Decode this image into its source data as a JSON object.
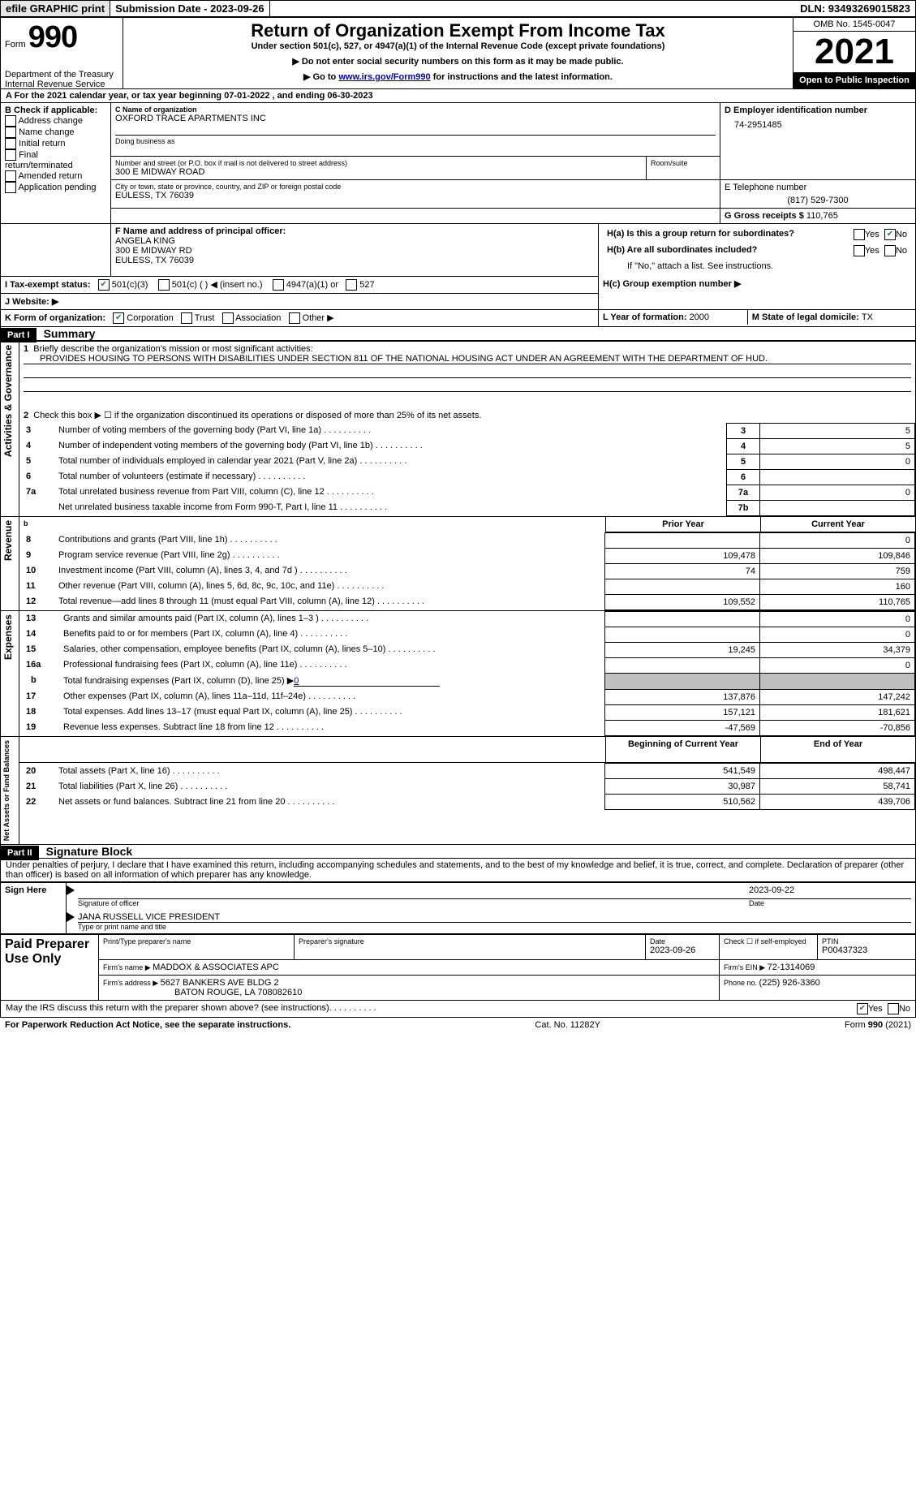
{
  "topbar": {
    "efile": "efile GRAPHIC print",
    "submission_label": "Submission Date - 2023-09-26",
    "dln": "DLN: 93493269015823"
  },
  "header": {
    "form_label": "Form",
    "form_number": "990",
    "title": "Return of Organization Exempt From Income Tax",
    "sub1": "Under section 501(c), 527, or 4947(a)(1) of the Internal Revenue Code (except private foundations)",
    "sub2": "▶ Do not enter social security numbers on this form as it may be made public.",
    "sub3_a": "▶ Go to ",
    "sub3_link": "www.irs.gov/Form990",
    "sub3_b": " for instructions and the latest information.",
    "omb": "OMB No. 1545-0047",
    "year": "2021",
    "open_public": "Open to Public Inspection",
    "dept": "Department of the Treasury",
    "irs": "Internal Revenue Service"
  },
  "sectionA": {
    "line": "A For the 2021 calendar year, or tax year beginning 07-01-2022   , and ending 06-30-2023",
    "B_head": "B Check if applicable:",
    "opts": [
      "Address change",
      "Name change",
      "Initial return",
      "Final return/terminated",
      "Amended return",
      "Application pending"
    ],
    "C_label": "C Name of organization",
    "org_name": "OXFORD TRACE APARTMENTS INC",
    "dba_label": "Doing business as",
    "addr_label": "Number and street (or P.O. box if mail is not delivered to street address)",
    "addr": "300 E MIDWAY ROAD",
    "room_label": "Room/suite",
    "city_label": "City or town, state or province, country, and ZIP or foreign postal code",
    "city": "EULESS, TX  76039",
    "D_label": "D Employer identification number",
    "ein": "74-2951485",
    "E_label": "E Telephone number",
    "phone": "(817) 529-7300",
    "G_label": "G Gross receipts $ ",
    "gross": "110,765",
    "F_label": "F  Name and address of principal officer:",
    "officer_name": "ANGELA KING",
    "officer_addr1": "300 E MIDWAY RD",
    "officer_addr2": "EULESS, TX  76039",
    "Ha": "H(a)  Is this a group return for subordinates?",
    "Hb": "H(b)  Are all subordinates included?",
    "Hb_note": "If \"No,\" attach a list. See instructions.",
    "Hc": "H(c)  Group exemption number ▶",
    "yes": "Yes",
    "no": "No",
    "I_label": "I   Tax-exempt status:",
    "I_opts": [
      "501(c)(3)",
      "501(c) (  ) ◀ (insert no.)",
      "4947(a)(1) or",
      "527"
    ],
    "J_label": "J   Website: ▶",
    "K_label": "K Form of organization:",
    "K_opts": [
      "Corporation",
      "Trust",
      "Association",
      "Other ▶"
    ],
    "L_label": "L Year of formation: ",
    "L_val": "2000",
    "M_label": "M State of legal domicile: ",
    "M_val": "TX"
  },
  "partI": {
    "header": "Part I",
    "title": "Summary",
    "q1": "Briefly describe the organization's mission or most significant activities:",
    "mission": "PROVIDES HOUSING TO PERSONS WITH DISABILITIES UNDER SECTION 811 OF THE NATIONAL HOUSING ACT UNDER AN AGREEMENT WITH THE DEPARTMENT OF HUD.",
    "q2": "Check this box ▶ ☐  if the organization discontinued its operations or disposed of more than 25% of its net assets.",
    "sideA": "Activities & Governance",
    "sideR": "Revenue",
    "sideE": "Expenses",
    "sideN": "Net Assets or Fund Balances",
    "rows": [
      {
        "n": "3",
        "txt": "Number of voting members of the governing body (Part VI, line 1a)",
        "box": "3",
        "v": "5"
      },
      {
        "n": "4",
        "txt": "Number of independent voting members of the governing body (Part VI, line 1b)",
        "box": "4",
        "v": "5"
      },
      {
        "n": "5",
        "txt": "Total number of individuals employed in calendar year 2021 (Part V, line 2a)",
        "box": "5",
        "v": "0"
      },
      {
        "n": "6",
        "txt": "Total number of volunteers (estimate if necessary)",
        "box": "6",
        "v": ""
      },
      {
        "n": "7a",
        "txt": "Total unrelated business revenue from Part VIII, column (C), line 12",
        "box": "7a",
        "v": "0"
      },
      {
        "n": "",
        "txt": "Net unrelated business taxable income from Form 990-T, Part I, line 11",
        "box": "7b",
        "v": ""
      }
    ],
    "col_prior": "Prior Year",
    "col_curr": "Current Year",
    "rev": [
      {
        "n": "8",
        "txt": "Contributions and grants (Part VIII, line 1h)",
        "p": "",
        "c": "0"
      },
      {
        "n": "9",
        "txt": "Program service revenue (Part VIII, line 2g)",
        "p": "109,478",
        "c": "109,846"
      },
      {
        "n": "10",
        "txt": "Investment income (Part VIII, column (A), lines 3, 4, and 7d )",
        "p": "74",
        "c": "759"
      },
      {
        "n": "11",
        "txt": "Other revenue (Part VIII, column (A), lines 5, 6d, 8c, 9c, 10c, and 11e)",
        "p": "",
        "c": "160"
      },
      {
        "n": "12",
        "txt": "Total revenue—add lines 8 through 11 (must equal Part VIII, column (A), line 12)",
        "p": "109,552",
        "c": "110,765"
      }
    ],
    "exp": [
      {
        "n": "13",
        "txt": "Grants and similar amounts paid (Part IX, column (A), lines 1–3 )",
        "p": "",
        "c": "0"
      },
      {
        "n": "14",
        "txt": "Benefits paid to or for members (Part IX, column (A), line 4)",
        "p": "",
        "c": "0"
      },
      {
        "n": "15",
        "txt": "Salaries, other compensation, employee benefits (Part IX, column (A), lines 5–10)",
        "p": "19,245",
        "c": "34,379"
      },
      {
        "n": "16a",
        "txt": "Professional fundraising fees (Part IX, column (A), line 11e)",
        "p": "",
        "c": "0"
      },
      {
        "n": "b",
        "txt": "Total fundraising expenses (Part IX, column (D), line 25) ▶",
        "fr": "0"
      },
      {
        "n": "17",
        "txt": "Other expenses (Part IX, column (A), lines 11a–11d, 11f–24e)",
        "p": "137,876",
        "c": "147,242"
      },
      {
        "n": "18",
        "txt": "Total expenses. Add lines 13–17 (must equal Part IX, column (A), line 25)",
        "p": "157,121",
        "c": "181,621"
      },
      {
        "n": "19",
        "txt": "Revenue less expenses. Subtract line 18 from line 12",
        "p": "-47,569",
        "c": "-70,856"
      }
    ],
    "col_beg": "Beginning of Current Year",
    "col_end": "End of Year",
    "net": [
      {
        "n": "20",
        "txt": "Total assets (Part X, line 16)",
        "p": "541,549",
        "c": "498,447"
      },
      {
        "n": "21",
        "txt": "Total liabilities (Part X, line 26)",
        "p": "30,987",
        "c": "58,741"
      },
      {
        "n": "22",
        "txt": "Net assets or fund balances. Subtract line 21 from line 20",
        "p": "510,562",
        "c": "439,706"
      }
    ]
  },
  "partII": {
    "header": "Part II",
    "title": "Signature Block",
    "decl": "Under penalties of perjury, I declare that I have examined this return, including accompanying schedules and statements, and to the best of my knowledge and belief, it is true, correct, and complete. Declaration of preparer (other than officer) is based on all information of which preparer has any knowledge.",
    "sign_here": "Sign Here",
    "sig_off": "Signature of officer",
    "sig_date": "2023-09-22",
    "date_label": "Date",
    "off_name": "JANA RUSSELL  VICE PRESIDENT",
    "off_label": "Type or print name and title",
    "paid": "Paid Preparer Use Only",
    "prep_name_label": "Print/Type preparer's name",
    "prep_sig_label": "Preparer's signature",
    "prep_date": "2023-09-26",
    "check_self": "Check ☐  if self-employed",
    "ptin_label": "PTIN",
    "ptin": "P00437323",
    "firm_name_label": "Firm's name    ▶ ",
    "firm_name": "MADDOX & ASSOCIATES APC",
    "firm_ein_label": "Firm's EIN ▶ ",
    "firm_ein": "72-1314069",
    "firm_addr_label": "Firm's address ▶ ",
    "firm_addr1": "5627 BANKERS AVE BLDG 2",
    "firm_addr2": "BATON ROUGE, LA  708082610",
    "firm_phone_label": "Phone no. ",
    "firm_phone": "(225) 926-3360",
    "discuss": "May the IRS discuss this return with the preparer shown above? (see instructions)"
  },
  "footer": {
    "pra": "For Paperwork Reduction Act Notice, see the separate instructions.",
    "cat": "Cat. No. 11282Y",
    "form": "Form 990 (2021)"
  },
  "colors": {
    "link": "#0000cc",
    "check_green": "#2a7d3a",
    "shaded": "#c0c0c0"
  }
}
